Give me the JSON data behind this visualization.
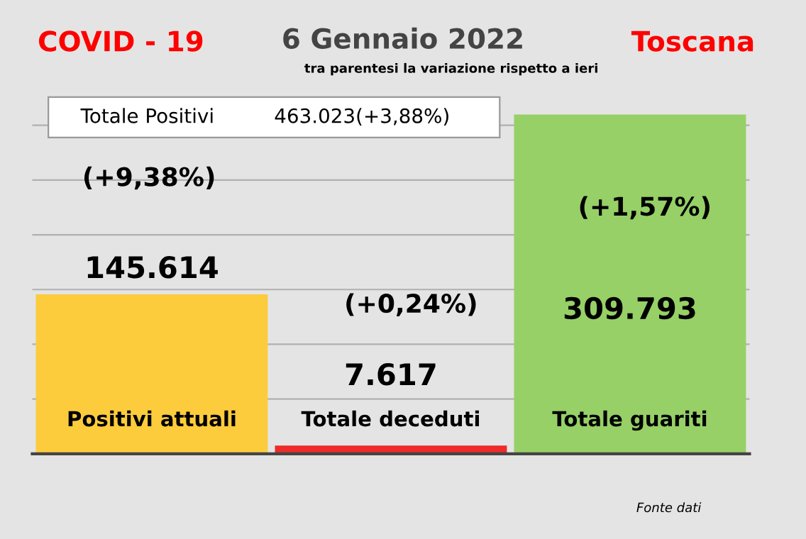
{
  "chart_data": {
    "type": "bar",
    "title": "6 Gennaio 2022",
    "subtitle": "tra parentesi la variazione rispetto a ieri",
    "categories": [
      "Positivi attuali",
      "Totale deceduti",
      "Totale guariti"
    ],
    "values": [
      145614,
      7617,
      309793
    ],
    "colors": [
      "#fccc3c",
      "#ee2a2a",
      "#96d066"
    ],
    "value_labels": [
      "145.614",
      "7.617",
      "309.793"
    ],
    "ylim": [
      0,
      310000
    ],
    "yticks": [
      {
        "value": 0,
        "label": null
      },
      {
        "value": 50000,
        "label": null
      },
      {
        "value": 100000,
        "label": null
      },
      {
        "value": 150000,
        "label": null
      },
      {
        "value": 200000,
        "label": null
      },
      {
        "value": 250000,
        "label": null
      },
      {
        "value": 300000,
        "label": null
      }
    ],
    "grid": "y",
    "legend": false,
    "annotations": [
      "COVID - 19",
      "Toscana",
      "Totale Positivi",
      "463.023(+3,88%)",
      "(+9,38%)",
      "(+0,24%)",
      "(+1,57%)",
      "Fonte dati"
    ]
  }
}
